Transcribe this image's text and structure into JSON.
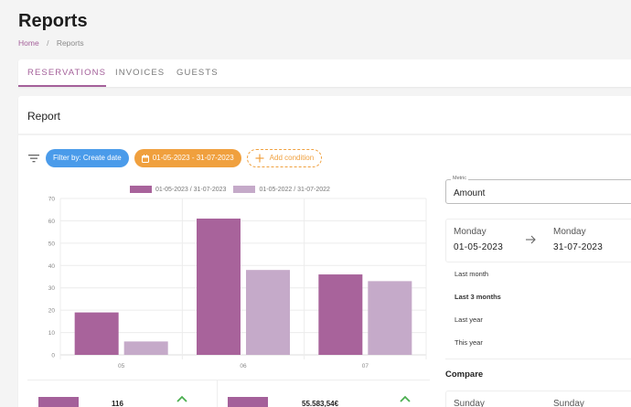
{
  "page": {
    "title": "Reports",
    "breadcrumb": [
      {
        "label": "Home"
      },
      {
        "label": "Reports"
      }
    ],
    "breadcrumb_separator": "/"
  },
  "tabs": [
    {
      "label": "RESERVATIONS",
      "active": true
    },
    {
      "label": "INVOICES",
      "active": false
    },
    {
      "label": "GUESTS",
      "active": false
    }
  ],
  "report": {
    "title": "Report",
    "filters": {
      "filter_by_label": "Filter by: Create date",
      "date_range_label": "01-05-2023 - 31-07-2023",
      "add_condition_label": "Add condition"
    }
  },
  "colors": {
    "accent": "#a4609a",
    "series_current": "#a8639b",
    "series_previous": "#c5aac9",
    "filter_blue": "#4a9bea",
    "filter_orange": "#f0a03e",
    "trend_up": "#4caf50"
  },
  "chart_data": {
    "type": "bar",
    "title": "",
    "xlabel": "",
    "ylabel": "",
    "categories": [
      "05",
      "06",
      "07"
    ],
    "series": [
      {
        "name": "01-05-2023 / 31-07-2023",
        "values": [
          19,
          61,
          36
        ],
        "color": "#a8639b"
      },
      {
        "name": "01-05-2022 / 31-07-2022",
        "values": [
          6,
          38,
          33
        ],
        "color": "#c5aac9"
      }
    ],
    "ylim": [
      0,
      70
    ],
    "yticks": [
      0,
      10,
      20,
      30,
      40,
      50,
      60,
      70
    ],
    "grid": true,
    "legend_position": "top"
  },
  "summary": [
    {
      "value": "116",
      "trend": "up"
    },
    {
      "value": "55.583,54€",
      "trend": "up"
    }
  ],
  "side_panel": {
    "metric_label": "Metric",
    "metric_value": "Amount",
    "range": {
      "start_day": "Monday",
      "start_date": "01-05-2023",
      "end_day": "Monday",
      "end_date": "31-07-2023"
    },
    "presets": [
      {
        "label": "Last month",
        "selected": false
      },
      {
        "label": "Last 3 months",
        "selected": true
      },
      {
        "label": "Last year",
        "selected": false
      },
      {
        "label": "This year",
        "selected": false
      }
    ],
    "compare_title": "Compare",
    "compare_range": {
      "start_day": "Sunday",
      "end_day": "Sunday"
    }
  }
}
